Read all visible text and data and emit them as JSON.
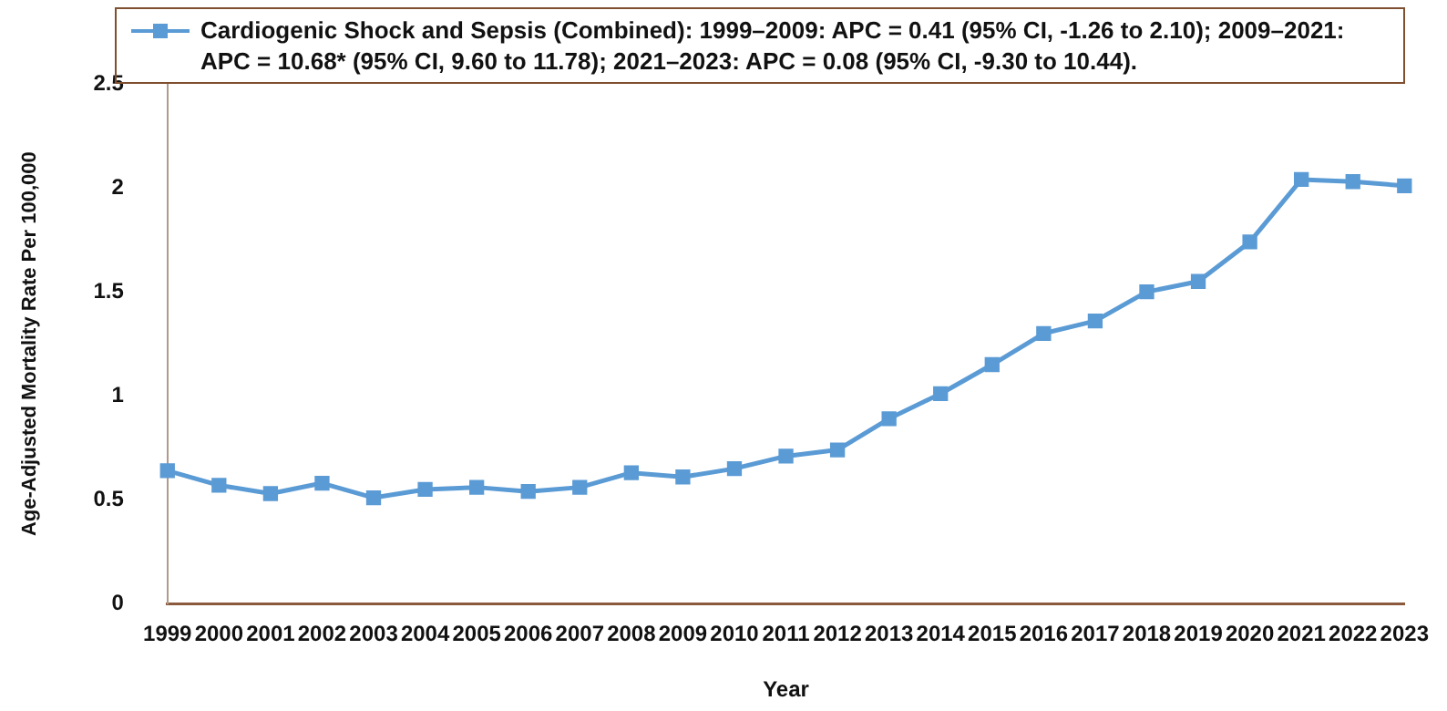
{
  "chart_data": {
    "type": "line",
    "xlabel": "Year",
    "ylabel": "Age-Adjusted Mortality Rate Per 100,000",
    "categories": [
      "1999",
      "2000",
      "2001",
      "2002",
      "2003",
      "2004",
      "2005",
      "2006",
      "2007",
      "2008",
      "2009",
      "2010",
      "2011",
      "2012",
      "2013",
      "2014",
      "2015",
      "2016",
      "2017",
      "2018",
      "2019",
      "2020",
      "2021",
      "2022",
      "2023"
    ],
    "series": [
      {
        "name": "Cardiogenic Shock and Sepsis (Combined): 1999–2009: APC = 0.41 (95% CI, -1.26 to 2.10); 2009–2021: APC = 10.68* (95% CI, 9.60 to 11.78); 2021–2023: APC = 0.08 (95% CI, -9.30 to 10.44).",
        "color": "#5b9bd5",
        "values": [
          0.64,
          0.57,
          0.53,
          0.58,
          0.51,
          0.55,
          0.56,
          0.54,
          0.56,
          0.63,
          0.61,
          0.65,
          0.71,
          0.74,
          0.89,
          1.01,
          1.15,
          1.3,
          1.36,
          1.5,
          1.55,
          1.74,
          2.04,
          2.03,
          2.01
        ]
      }
    ],
    "ylim": [
      0,
      2.5
    ],
    "yticks": [
      0,
      0.5,
      1,
      1.5,
      2,
      2.5
    ],
    "grid": false,
    "legend": "top",
    "marker": "square",
    "line_style": "solid"
  }
}
